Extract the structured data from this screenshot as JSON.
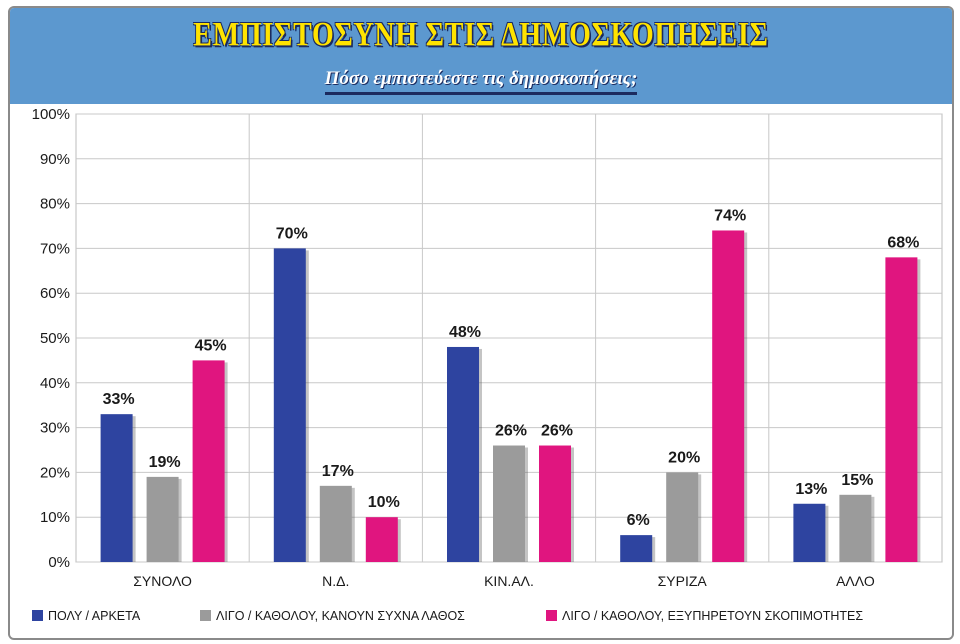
{
  "header": {
    "title": "ΕΜΠΙΣΤΟΣΥΝΗ ΣΤΙΣ ΔΗΜΟΣΚΟΠΗΣΕΙΣ",
    "subtitle": "Πόσο εμπιστεύεστε τις δημοσκοπήσεις;"
  },
  "colors": {
    "header_bg": "#5c98cf",
    "title": "#ffe300",
    "series": [
      "#2e44a0",
      "#9b9b9b",
      "#e0157f"
    ]
  },
  "chart_data": {
    "type": "bar",
    "title": "Πόσο εμπιστεύεστε τις δημοσκοπήσεις;",
    "categories": [
      "ΣΥΝΟΛΟ",
      "Ν.Δ.",
      "ΚΙΝ.ΑΛ.",
      "ΣΥΡΙΖΑ",
      "ΑΛΛΟ"
    ],
    "series": [
      {
        "name": "ΠΟΛΥ / ΑΡΚΕΤΑ",
        "values": [
          33,
          70,
          48,
          6,
          13
        ],
        "labels": [
          "33%",
          "70%",
          "48%",
          "6%",
          "13%"
        ],
        "color": "#2e44a0"
      },
      {
        "name": "ΛΙΓΟ / ΚΑΘΟΛΟΥ, ΚΑΝΟΥΝ ΣΥΧΝΑ ΛΑΘΟΣ",
        "values": [
          19,
          17,
          26,
          20,
          15
        ],
        "labels": [
          "19%",
          "17%",
          "26%",
          "20%",
          "15%"
        ],
        "color": "#9b9b9b"
      },
      {
        "name": "ΛΙΓΟ / ΚΑΘΟΛΟΥ, ΕΞΥΠΗΡΕΤΟΥΝ ΣΚΟΠΙΜΟΤΗΤΕΣ",
        "values": [
          45,
          10,
          26,
          74,
          68
        ],
        "labels": [
          "45%",
          "10%",
          "26%",
          "74%",
          "68%"
        ],
        "color": "#e0157f"
      }
    ],
    "ylim": [
      0,
      100
    ],
    "yticks": [
      "0%",
      "10%",
      "20%",
      "30%",
      "40%",
      "50%",
      "60%",
      "70%",
      "80%",
      "90%",
      "100%"
    ],
    "grid": true,
    "legend": "bottom"
  }
}
